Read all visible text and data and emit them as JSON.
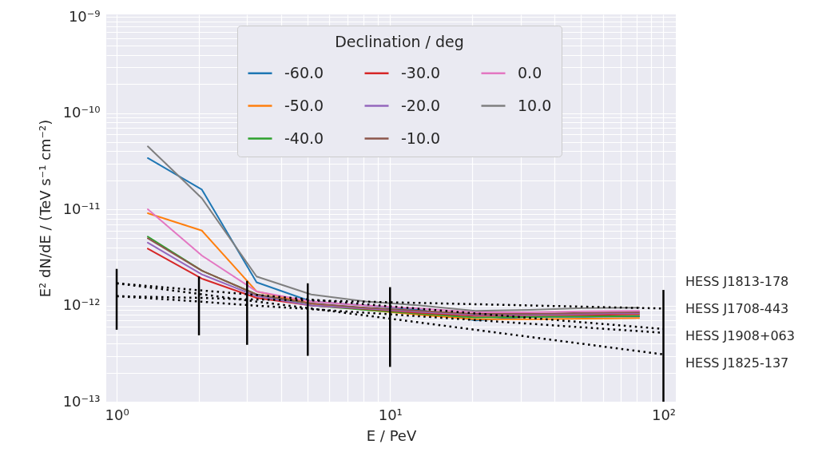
{
  "chart_data": {
    "type": "line",
    "xlabel": "E / PeV",
    "ylabel": "E² dN/dE / (TeV s⁻¹ cm⁻²)",
    "legend_title": "Declination / deg",
    "legend": "top right",
    "grid": true,
    "log": "xy",
    "xlim": [
      0.916,
      111
    ],
    "ylim": [
      1e-13,
      1.06e-09
    ],
    "xticks": [
      {
        "value": 1,
        "label": "10⁰"
      },
      {
        "value": 2,
        "label": null
      },
      {
        "value": 3,
        "label": null
      },
      {
        "value": 4,
        "label": null
      },
      {
        "value": 5,
        "label": null
      },
      {
        "value": 6,
        "label": null
      },
      {
        "value": 7,
        "label": null
      },
      {
        "value": 8,
        "label": null
      },
      {
        "value": 9,
        "label": null
      },
      {
        "value": 10,
        "label": "10¹"
      },
      {
        "value": 20,
        "label": null
      },
      {
        "value": 30,
        "label": null
      },
      {
        "value": 40,
        "label": null
      },
      {
        "value": 50,
        "label": null
      },
      {
        "value": 60,
        "label": null
      },
      {
        "value": 70,
        "label": null
      },
      {
        "value": 80,
        "label": null
      },
      {
        "value": 90,
        "label": null
      },
      {
        "value": 100,
        "label": "10²"
      }
    ],
    "yticks": [
      {
        "value": 1e-13,
        "label": "10⁻¹³"
      },
      {
        "value": 2e-13,
        "label": null
      },
      {
        "value": 3e-13,
        "label": null
      },
      {
        "value": 4e-13,
        "label": null
      },
      {
        "value": 5e-13,
        "label": null
      },
      {
        "value": 6e-13,
        "label": null
      },
      {
        "value": 7e-13,
        "label": null
      },
      {
        "value": 8e-13,
        "label": null
      },
      {
        "value": 9e-13,
        "label": null
      },
      {
        "value": 1e-12,
        "label": "10⁻¹²"
      },
      {
        "value": 2e-12,
        "label": null
      },
      {
        "value": 3e-12,
        "label": null
      },
      {
        "value": 4e-12,
        "label": null
      },
      {
        "value": 5e-12,
        "label": null
      },
      {
        "value": 6e-12,
        "label": null
      },
      {
        "value": 7e-12,
        "label": null
      },
      {
        "value": 8e-12,
        "label": null
      },
      {
        "value": 9e-12,
        "label": null
      },
      {
        "value": 1e-11,
        "label": "10⁻¹¹"
      },
      {
        "value": 2e-11,
        "label": null
      },
      {
        "value": 3e-11,
        "label": null
      },
      {
        "value": 4e-11,
        "label": null
      },
      {
        "value": 5e-11,
        "label": null
      },
      {
        "value": 6e-11,
        "label": null
      },
      {
        "value": 7e-11,
        "label": null
      },
      {
        "value": 8e-11,
        "label": null
      },
      {
        "value": 9e-11,
        "label": null
      },
      {
        "value": 1e-10,
        "label": "10⁻¹⁰"
      },
      {
        "value": 2e-10,
        "label": null
      },
      {
        "value": 3e-10,
        "label": null
      },
      {
        "value": 4e-10,
        "label": null
      },
      {
        "value": 5e-10,
        "label": null
      },
      {
        "value": 6e-10,
        "label": null
      },
      {
        "value": 7e-10,
        "label": null
      },
      {
        "value": 8e-10,
        "label": null
      },
      {
        "value": 9e-10,
        "label": null
      },
      {
        "value": 1e-09,
        "label": "10⁻⁹"
      }
    ],
    "x": [
      1.3,
      2.05,
      3.25,
      5.15,
      8.15,
      12.9,
      20.5,
      32.4,
      51.4,
      81.5
    ],
    "series": [
      {
        "name": "-60.0",
        "color": "#1f77b4",
        "values": [
          3.4e-11,
          1.6e-11,
          1.74e-12,
          1.1e-12,
          1e-12,
          9e-13,
          7e-13,
          7.6e-13,
          7.6e-13,
          7.7e-13
        ]
      },
      {
        "name": "-50.0",
        "color": "#ff7f0e",
        "values": [
          9.1e-12,
          6e-12,
          1.4e-12,
          1.05e-12,
          9e-13,
          8e-13,
          7.2e-13,
          7.2e-13,
          7.3e-13,
          7.4e-13
        ]
      },
      {
        "name": "-40.0",
        "color": "#2ca02c",
        "values": [
          5.2e-12,
          2.3e-12,
          1.3e-12,
          1e-12,
          9e-13,
          8.2e-13,
          7.5e-13,
          7.6e-13,
          7.7e-13,
          7.8e-13
        ]
      },
      {
        "name": "-30.0",
        "color": "#d62728",
        "values": [
          3.9e-12,
          1.9e-12,
          1.2e-12,
          1e-12,
          9.2e-13,
          8.4e-13,
          7.8e-13,
          7.9e-13,
          8e-13,
          8.1e-13
        ]
      },
      {
        "name": "-20.0",
        "color": "#9467bd",
        "values": [
          4.5e-12,
          2.1e-12,
          1.25e-12,
          1e-12,
          9.3e-13,
          8.6e-13,
          8e-13,
          8e-13,
          8.2e-13,
          8.3e-13
        ]
      },
      {
        "name": "-10.0",
        "color": "#8c564b",
        "values": [
          5e-12,
          2.3e-12,
          1.3e-12,
          1.05e-12,
          9.5e-13,
          8.8e-13,
          8.2e-13,
          8.2e-13,
          8.4e-13,
          8.5e-13
        ]
      },
      {
        "name": "0.0",
        "color": "#e377c2",
        "values": [
          1e-11,
          3.3e-12,
          1.4e-12,
          1.1e-12,
          1e-12,
          9.3e-13,
          8.5e-13,
          8.5e-13,
          8.7e-13,
          8.8e-13
        ]
      },
      {
        "name": "10.0",
        "color": "#7f7f7f",
        "values": [
          4.5e-11,
          1.3e-11,
          2e-12,
          1.3e-12,
          1.1e-12,
          1e-12,
          8.8e-13,
          9e-13,
          9.4e-13,
          9.5e-13
        ]
      },
      {
        "name": "HESS J1813-178",
        "color": "#000000",
        "line_style": "dotted",
        "x": [
          1,
          2,
          3,
          5,
          10,
          100
        ],
        "values": [
          1.25e-12,
          1.2e-12,
          1.16e-12,
          1.13e-12,
          1.08e-12,
          9.3e-13
        ]
      },
      {
        "name": "HESS J1708-443",
        "color": "#000000",
        "line_style": "dotted",
        "x": [
          1,
          2,
          3,
          5,
          10,
          100
        ],
        "values": [
          1.7e-12,
          1.44e-12,
          1.31e-12,
          1.16e-12,
          9.8e-13,
          5.7e-13
        ]
      },
      {
        "name": "HESS J1908+063",
        "color": "#000000",
        "line_style": "dotted",
        "x": [
          1,
          2,
          3,
          5,
          10,
          100
        ],
        "values": [
          1.25e-12,
          1.1e-12,
          1.01e-12,
          9.2e-13,
          8.1e-13,
          5.2e-13
        ]
      },
      {
        "name": "HESS J1825-137",
        "color": "#000000",
        "line_style": "dotted",
        "x": [
          1,
          2,
          3,
          5,
          10,
          100
        ],
        "values": [
          1.7e-12,
          1.32e-12,
          1.13e-12,
          9.4e-13,
          7.3e-13,
          3.1e-13
        ],
        "errors": [
          [
            5.6e-13,
            2.4e-12
          ],
          [
            4.9e-13,
            2e-12
          ],
          [
            3.9e-13,
            1.8e-12
          ],
          [
            3e-13,
            1.7e-12
          ],
          [
            2.3e-13,
            1.55e-12
          ],
          [
            1e-13,
            1.45e-12
          ]
        ]
      }
    ]
  }
}
